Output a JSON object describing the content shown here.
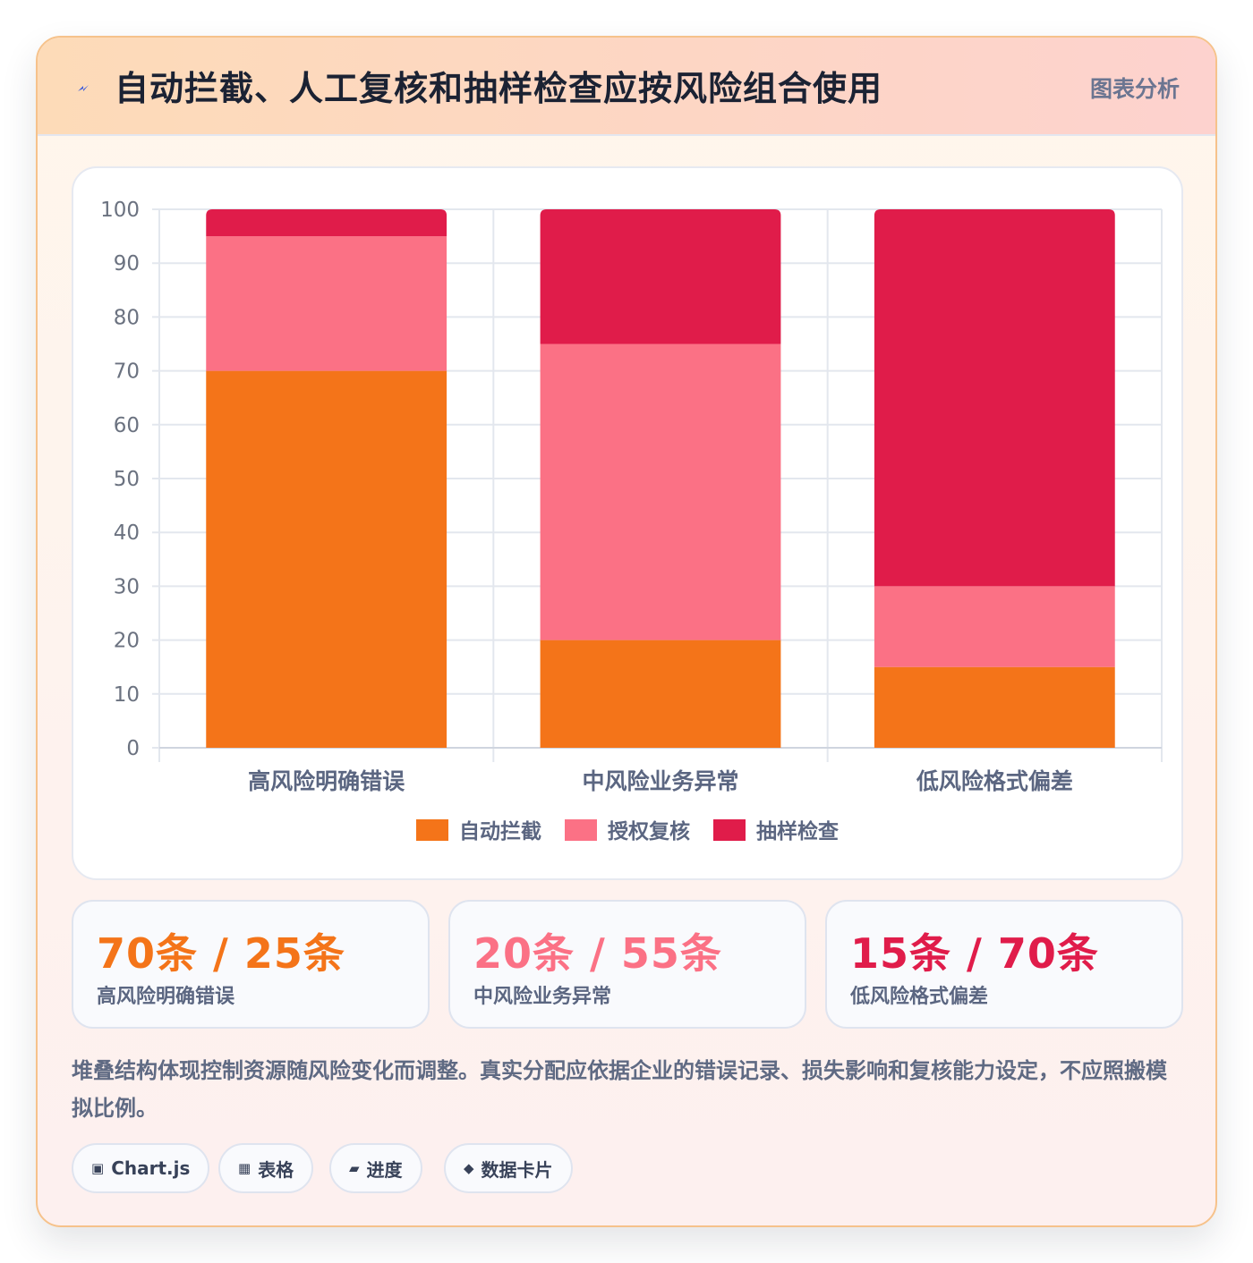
{
  "header": {
    "icon": "lightning-bolt-icon",
    "title": "自动拦截、人工复核和抽样检查应按风险组合使用",
    "tag": "图表分析"
  },
  "chart_data": {
    "type": "bar",
    "stacked": true,
    "categories": [
      "高风险明确错误",
      "中风险业务异常",
      "低风险格式偏差"
    ],
    "series": [
      {
        "name": "自动拦截",
        "color": "#f47419",
        "values": [
          70,
          20,
          15
        ]
      },
      {
        "name": "授权复核",
        "color": "#fb7185",
        "values": [
          25,
          55,
          15
        ]
      },
      {
        "name": "抽样检查",
        "color": "#e01c4a",
        "values": [
          5,
          25,
          70
        ]
      }
    ],
    "ylim": [
      0,
      100
    ],
    "yticks": [
      0,
      10,
      20,
      30,
      40,
      50,
      60,
      70,
      80,
      90,
      100
    ],
    "grid": true,
    "legend": "bottom"
  },
  "stats": [
    {
      "value": "70条 / 25条",
      "label": "高风险明确错误",
      "color": "#f47419"
    },
    {
      "value": "20条 / 55条",
      "label": "中风险业务异常",
      "color": "#fb7185"
    },
    {
      "value": "15条 / 70条",
      "label": "低风险格式偏差",
      "color": "#e01c4a"
    }
  ],
  "note": "堆叠结构体现控制资源随风险变化而调整。真实分配应依据企业的错误记录、损失影响和复核能力设定，不应照搬模拟比例。",
  "chips": [
    {
      "icon": "▣",
      "label": "Chart.js"
    },
    {
      "icon": "▦",
      "label": "表格"
    },
    {
      "icon": "▰",
      "label": "进度"
    },
    {
      "icon": "◆",
      "label": "数据卡片"
    }
  ]
}
